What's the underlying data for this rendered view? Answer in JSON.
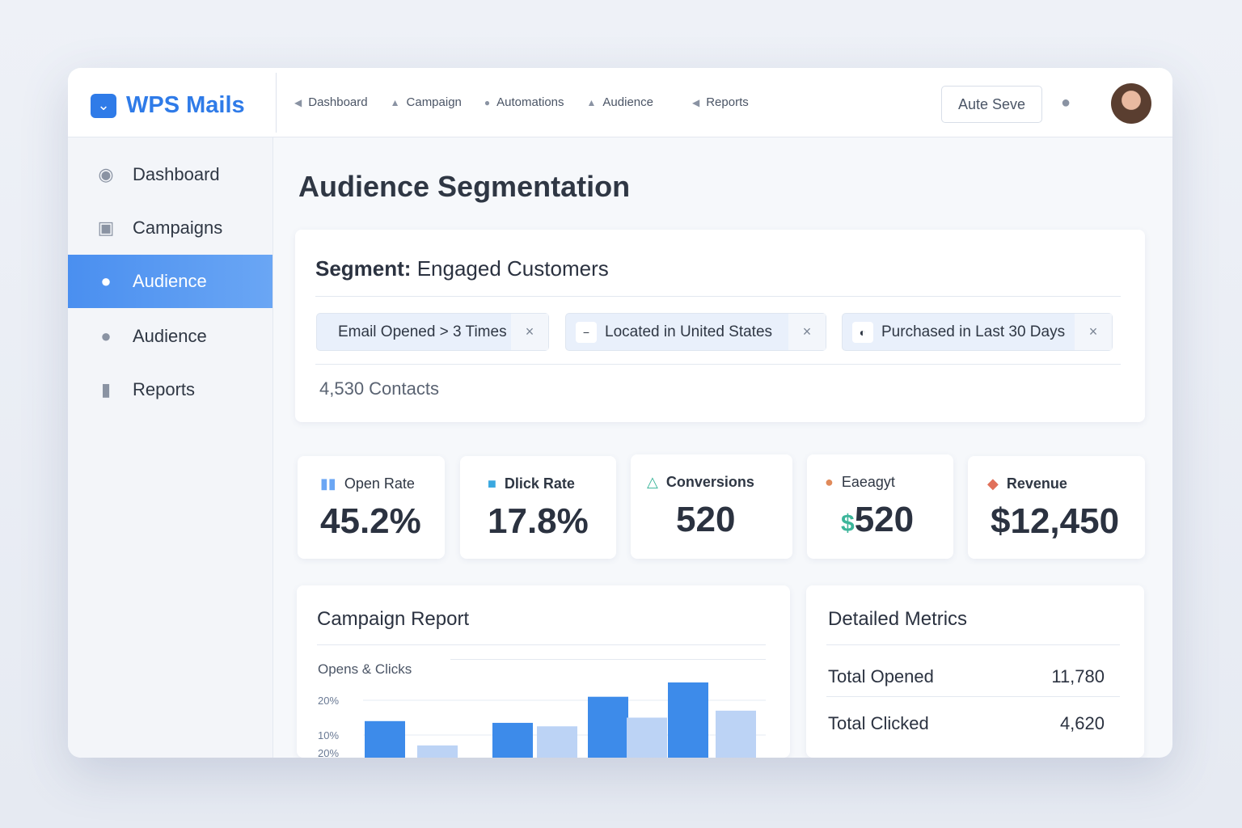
{
  "app": {
    "name": "WPS Mails",
    "logo_icon": "envelope-chevron-icon"
  },
  "topnav": [
    {
      "label": "Dashboard",
      "icon": "megaphone-icon"
    },
    {
      "label": "Campaign",
      "icon": "triangle-icon"
    },
    {
      "label": "Automations",
      "icon": "dot-icon"
    },
    {
      "label": "Audience",
      "icon": "triangle-icon"
    },
    {
      "label": "Reports",
      "icon": "megaphone-icon"
    }
  ],
  "autosave_label": "Aute Seve",
  "sidebar": [
    {
      "label": "Dashboard",
      "icon": "clock-icon"
    },
    {
      "label": "Campaigns",
      "icon": "image-icon"
    },
    {
      "label": "Audience",
      "icon": "user-icon",
      "active": true
    },
    {
      "label": "Audience",
      "icon": "user-icon"
    },
    {
      "label": "Reports",
      "icon": "bar-chart-icon"
    }
  ],
  "page_title": "Audience Segmentation",
  "segment": {
    "prefix": "Segment:",
    "name": "Engaged Customers",
    "filters": [
      {
        "label": "Email Opened > 3 Times"
      },
      {
        "label": "Located in United States",
        "icon": "minus-icon"
      },
      {
        "label": "Purchased in Last 30 Days",
        "icon": "location-icon"
      }
    ],
    "remove_label": "×",
    "contacts": "4,530 Contacts"
  },
  "kpis": [
    {
      "label": "Open Rate",
      "value": "45.2%",
      "icon": "bar-chart-icon",
      "color": "#6aa6f4"
    },
    {
      "label": "Dlick Rate",
      "value": "17.8%",
      "icon": "folder-icon",
      "color": "#3aa8e0"
    },
    {
      "label": "Conversions",
      "value": "520",
      "icon": "triangle-icon",
      "color": "#3bb59a"
    },
    {
      "label": "Eaeagyt",
      "value": "520",
      "prefix": "$",
      "icon": "leaf-icon",
      "color": "#e08a5a"
    },
    {
      "label": "Revenue",
      "value": "$12,450",
      "icon": "tag-icon",
      "color": "#e0705a"
    }
  ],
  "report": {
    "title": "Campaign Report",
    "subtitle": "Opens & Clicks"
  },
  "chart_data": {
    "type": "bar",
    "ytick_labels": [
      "20%",
      "10%",
      "20%"
    ],
    "series": [
      {
        "color": "#3d8bea",
        "values": [
          14,
          13.5,
          21,
          27
        ]
      },
      {
        "color": "#bcd3f5",
        "values": [
          7,
          12.5,
          15,
          17
        ]
      }
    ],
    "grid": true
  },
  "metrics": {
    "title": "Detailed Metrics",
    "rows": [
      {
        "label": "Total Opened",
        "value": "11,780"
      },
      {
        "label": "Total Clicked",
        "value": "4,620"
      }
    ]
  }
}
